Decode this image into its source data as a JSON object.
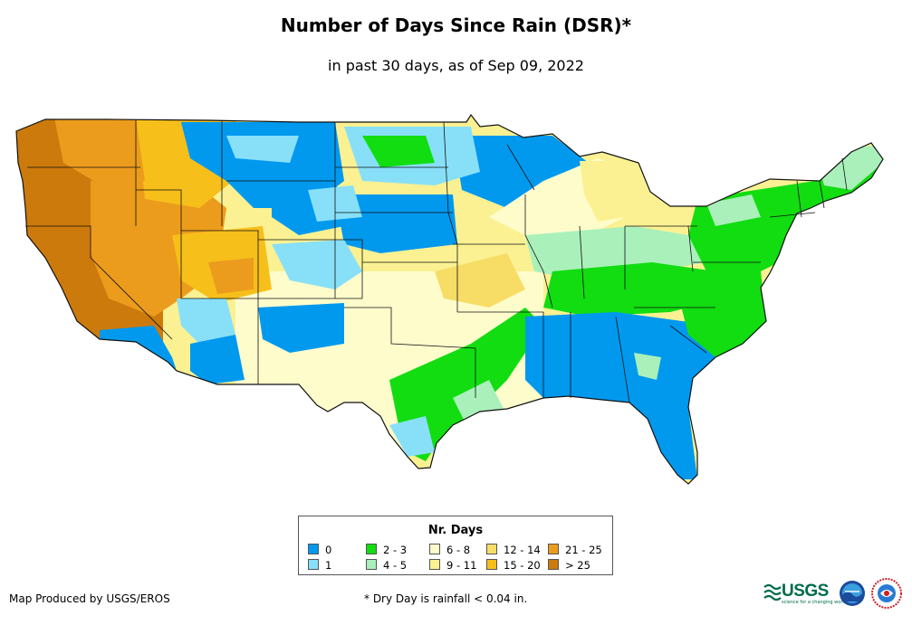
{
  "title": "Number of Days Since Rain (DSR)*",
  "subtitle": "in past 30 days, as of Sep 09, 2022",
  "legend": {
    "title": "Nr. Days",
    "items": [
      {
        "label": "0",
        "color": "#0099ee"
      },
      {
        "label": "1",
        "color": "#88e0f8"
      },
      {
        "label": "2 - 3",
        "color": "#11dd11"
      },
      {
        "label": "4 - 5",
        "color": "#aaf0bb"
      },
      {
        "label": "6 - 8",
        "color": "#fffccc"
      },
      {
        "label": "9 - 11",
        "color": "#fbf192"
      },
      {
        "label": "12 - 14",
        "color": "#f7dd66"
      },
      {
        "label": "15 - 20",
        "color": "#f6bf1a"
      },
      {
        "label": "21 - 25",
        "color": "#ec9c1c"
      },
      {
        "label": "> 25",
        "color": "#cd7a0c"
      }
    ]
  },
  "footer": {
    "producer": "Map Produced by USGS/EROS",
    "note": "* Dry Day is rainfall < 0.04 in."
  },
  "logos": {
    "usgs": "USGS",
    "usgs_tagline": "science for a changing world"
  }
}
